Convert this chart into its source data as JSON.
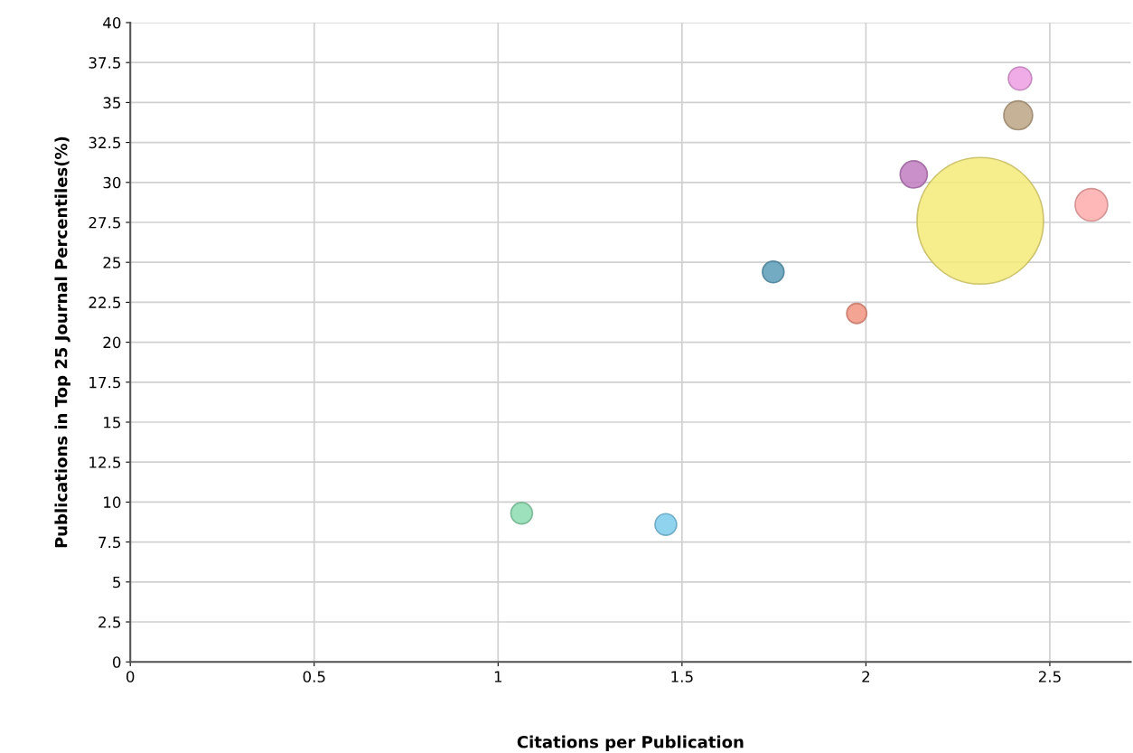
{
  "chart_data": {
    "type": "bubble",
    "xlabel": "Citations per Publication",
    "ylabel": "Publications in Top 25 Journal Percentiles(%)",
    "x": [
      1.064,
      1.456,
      1.748,
      1.975,
      2.13,
      2.311,
      2.414,
      2.419,
      2.613
    ],
    "values": [
      9.3,
      8.6,
      24.4,
      21.8,
      30.5,
      27.6,
      34.2,
      36.5,
      28.6
    ],
    "sizes": [
      0.029,
      0.029,
      0.029,
      0.025,
      0.046,
      1,
      0.052,
      0.034,
      0.066
    ],
    "colors": [
      "#8cdcb0",
      "#7ccbec",
      "#5a9cb8",
      "#f29480",
      "#c07cc0",
      "#f5ea78",
      "#bca584",
      "#ec9ee2",
      "#ffabab"
    ],
    "xlim": [
      0,
      2.72
    ],
    "xticks": [
      0,
      0.5,
      1,
      1.5,
      2,
      2.5
    ],
    "ylim": [
      0,
      40
    ],
    "yticks": [
      0,
      2.5,
      5,
      7.5,
      10,
      12.5,
      15,
      17.5,
      20,
      22.5,
      25,
      27.5,
      30,
      32.5,
      35,
      37.5,
      40
    ],
    "grid": true
  }
}
